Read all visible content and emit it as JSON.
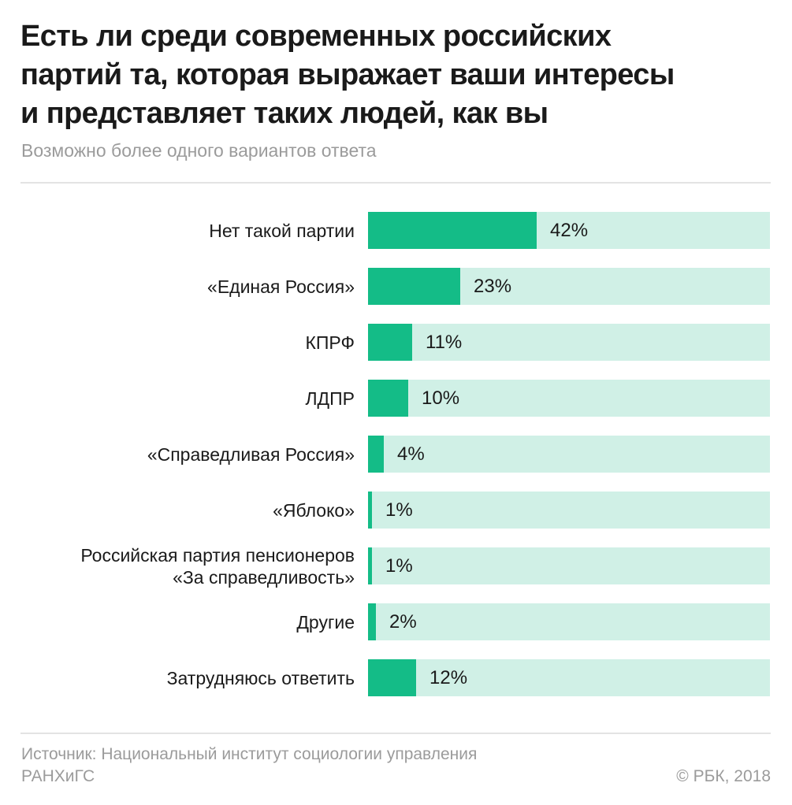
{
  "header": {
    "title_lines": [
      "Есть ли среди современных российских",
      "партий та, которая выражает ваши интересы",
      "и представляет таких людей, как вы"
    ],
    "subtitle": "Возможно более одного вариантов ответа"
  },
  "footer": {
    "source_lines": [
      "Источник: Национальный институт социологии управления",
      "РАНХиГС"
    ],
    "copyright": "© РБК, 2018"
  },
  "colors": {
    "bar_fill": "#14bc87",
    "bar_track": "#d0f0e6",
    "text": "#1a1a1a",
    "muted_text": "#9b9b9b"
  },
  "chart_data": {
    "type": "bar",
    "orientation": "horizontal",
    "title": "Есть ли среди современных российских партий та, которая выражает ваши интересы и представляет таких людей, как вы",
    "subtitle": "Возможно более одного вариантов ответа",
    "xlabel": "",
    "ylabel": "",
    "xlim": [
      0,
      100
    ],
    "unit": "%",
    "grid": false,
    "legend": "none",
    "categories": [
      [
        "Нет такой партии"
      ],
      [
        "«Единая Россия»"
      ],
      [
        "КПРФ"
      ],
      [
        "ЛДПР"
      ],
      [
        "«Справедливая Россия»"
      ],
      [
        "«Яблоко»"
      ],
      [
        "Российская партия пенсионеров",
        "«За справедливость»"
      ],
      [
        "Другие"
      ],
      [
        "Затрудняюсь ответить"
      ]
    ],
    "values": [
      42,
      23,
      11,
      10,
      4,
      1,
      1,
      2,
      12
    ],
    "value_labels": [
      "42%",
      "23%",
      "11%",
      "10%",
      "4%",
      "1%",
      "1%",
      "2%",
      "12%"
    ]
  }
}
